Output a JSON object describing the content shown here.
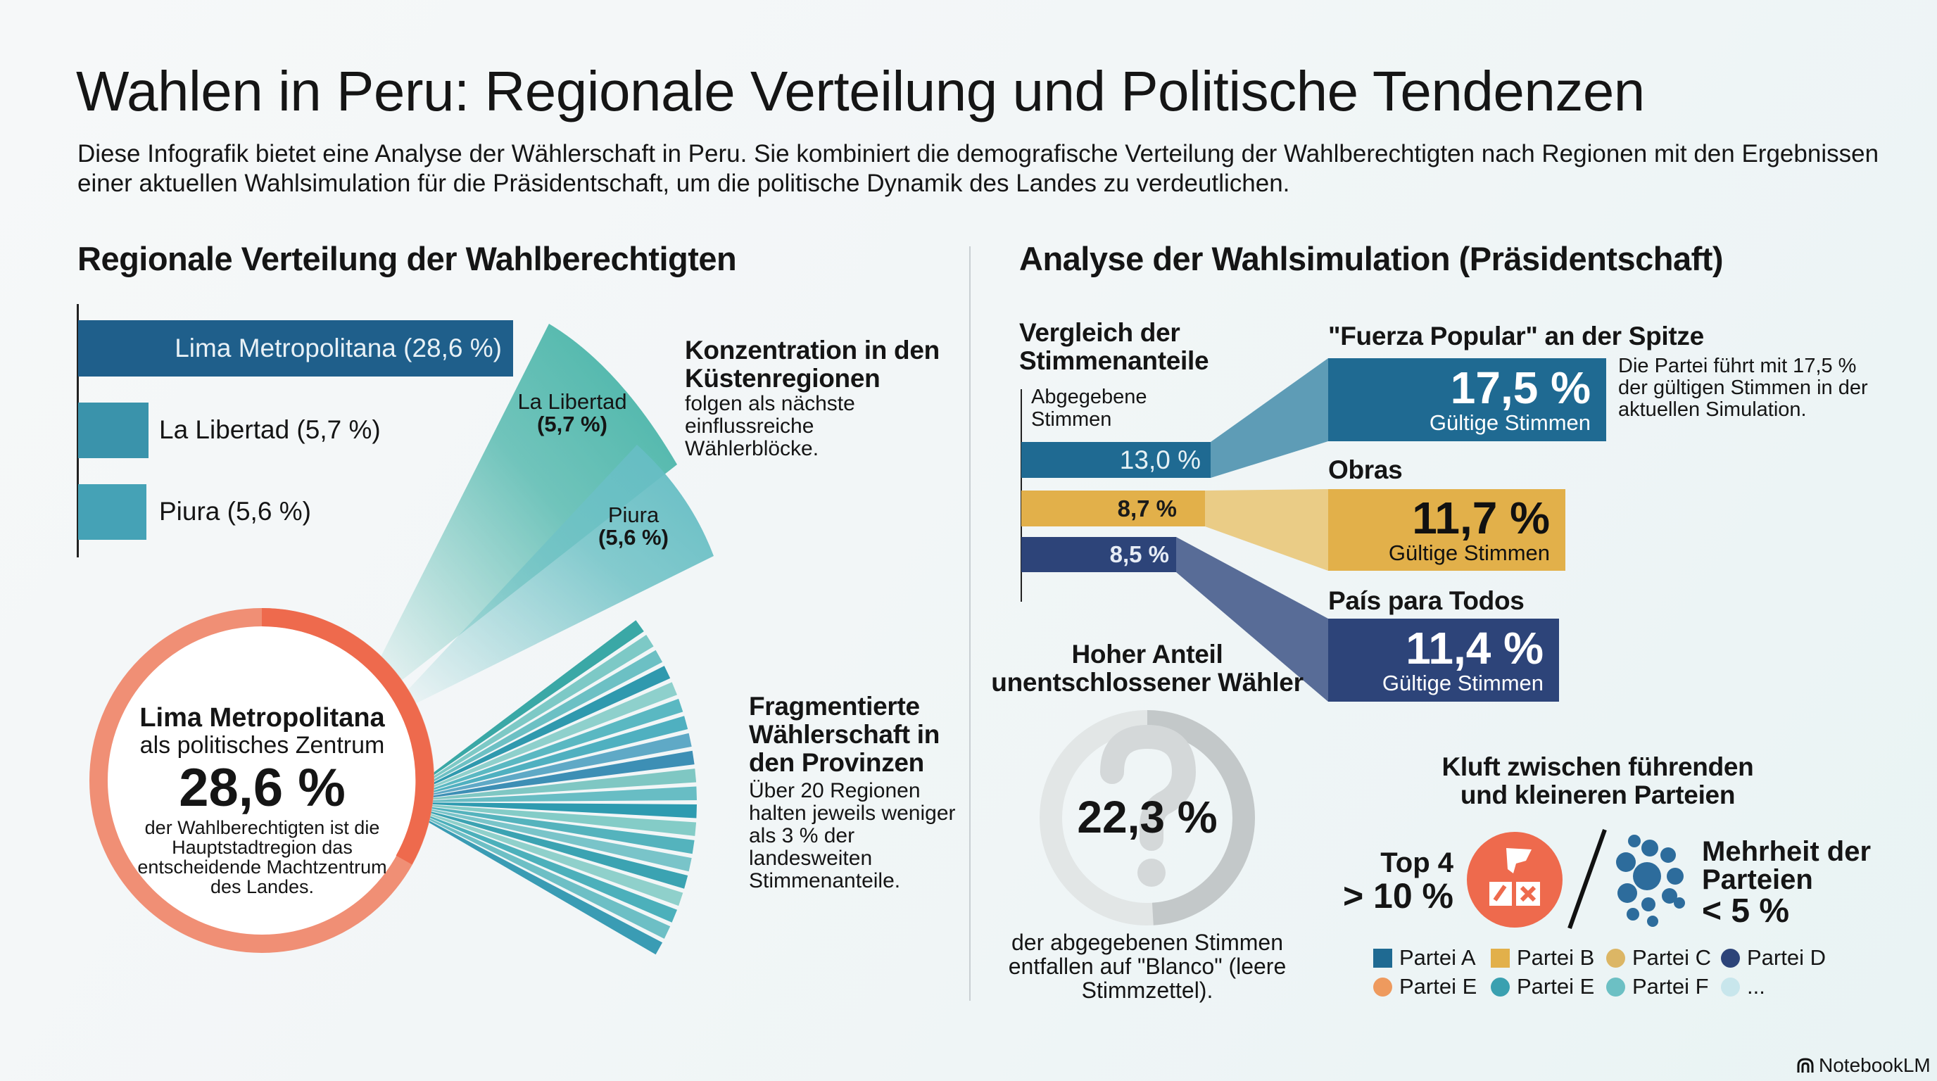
{
  "title": "Wahlen in Peru: Regionale Verteilung und Politische Tendenzen",
  "subtitle": "Diese Infografik bietet eine Analyse der Wählerschaft in Peru. Sie kombiniert die demografische Verteilung der Wahlberechtigten nach Regionen mit den Ergebnissen einer aktuellen Wahlsimulation für die Präsidentschaft, um die politische Dynamik des Landes zu verdeutlichen.",
  "left": {
    "heading": "Regionale Verteilung der Wahlberechtigten",
    "bars": [
      {
        "label": "Lima Metropolitana (28,6 %)",
        "region": "Lima Metropolitana",
        "value": 28.6,
        "color": "#1f5f8b"
      },
      {
        "label": "La Libertad (5,7 %)",
        "region": "La Libertad",
        "value": 5.7,
        "color": "#3a93ab"
      },
      {
        "label": "Piura (5,6 %)",
        "region": "Piura",
        "value": 5.6,
        "color": "#45a2b6"
      }
    ],
    "wedges": {
      "la_libertad": {
        "name": "La Libertad",
        "value": "(5,7 %)"
      },
      "piura": {
        "name": "Piura",
        "value": "(5,6 %)"
      }
    },
    "coast": {
      "title": "Konzentration in den Küstenregionen",
      "text": "folgen als nächste einflussreiche Wählerblöcke."
    },
    "provinces": {
      "title": "Fragmentierte Wählerschaft in den Provinzen",
      "text": "Über 20 Regionen halten jeweils weniger als 3 % der landesweiten Stimmenanteile."
    },
    "center": {
      "title": "Lima Metropolitana",
      "subtitle": "als politisches Zentrum",
      "value": "28,6 %",
      "text": "der Wahlberechtigten ist die Hauptstadtregion das entscheidende Machtzentrum des Landes."
    }
  },
  "right": {
    "heading": "Analyse der Wahlsimulation (Präsidentschaft)",
    "compare_title": "Vergleich der Stimmenanteile",
    "cast_label": "Abgegebene Stimmen",
    "parties": [
      {
        "name": "\"Fuerza Popular\" an der Spitze",
        "cast": "13,0 %",
        "valid": "17,5 %",
        "valid_label": "Gültige Stimmen",
        "color": "#1f6a92"
      },
      {
        "name": "Obras",
        "cast": "8,7 %",
        "valid": "11,7 %",
        "valid_label": "Gültige Stimmen",
        "color": "#e2b04a"
      },
      {
        "name": "País para Todos",
        "cast": "8,5 %",
        "valid": "11,4 %",
        "valid_label": "Gültige Stimmen",
        "color": "#2d4479"
      }
    ],
    "leader_note": "Die Partei führt mit 17,5 % der gültigen Stimmen in der aktuellen Simulation.",
    "undecided": {
      "title": "Hoher Anteil unentschlossener Wähler",
      "value": "22,3 %",
      "fraction": 0.223,
      "text": "der abgegebenen Stimmen entfallen auf \"Blanco\" (leere Stimmzettel)."
    },
    "gap": {
      "title": "Kluft zwischen führenden und kleineren Parteien",
      "top_label": "Top 4",
      "top_value": "> 10 %",
      "rest_label": "Mehrheit der Parteien",
      "rest_value": "< 5 %"
    },
    "legend": [
      {
        "label": "Partei A",
        "color": "#1f6a92",
        "shape": "square"
      },
      {
        "label": "Partei B",
        "color": "#e2b04a",
        "shape": "square"
      },
      {
        "label": "Partei C",
        "color": "#dcb665",
        "shape": "circle"
      },
      {
        "label": "Partei D",
        "color": "#2d4479",
        "shape": "circle"
      },
      {
        "label": "Partei E",
        "color": "#ee9a5e",
        "shape": "circle"
      },
      {
        "label": "Partei E",
        "color": "#3aa0b0",
        "shape": "circle"
      },
      {
        "label": "Partei F",
        "color": "#6cc0c4",
        "shape": "circle"
      },
      {
        "label": "...",
        "color": "#c8e6ec",
        "shape": "circle"
      }
    ]
  },
  "brand": "NotebookLM"
}
